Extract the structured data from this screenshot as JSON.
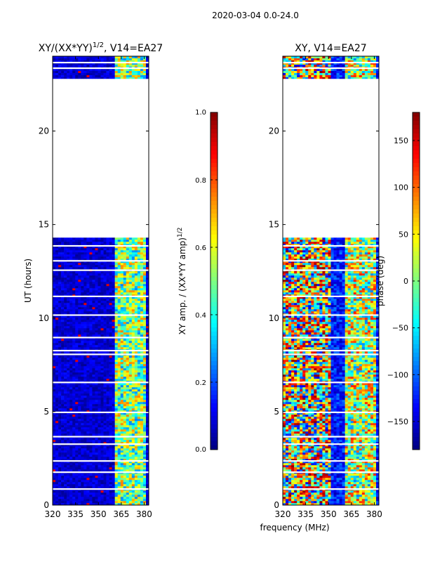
{
  "figure": {
    "suptitle": "2020-03-04 0.0-24.0"
  },
  "chart_data": [
    {
      "type": "heatmap",
      "title": "XY/(XX*YY)^{1/2}, V14=EA27",
      "title_main": "XY/(XX*YY)",
      "title_sup": "1/2",
      "title_tail": ", V14=EA27",
      "xlabel": "",
      "ylabel": "UT (hours)",
      "xlim": [
        320,
        383
      ],
      "ylim": [
        0,
        24
      ],
      "xticks": [
        320,
        335,
        350,
        365,
        380
      ],
      "yticks": [
        0,
        5,
        10,
        15,
        20
      ],
      "data_present_hours": [
        [
          0,
          14.3
        ],
        [
          22.8,
          24
        ]
      ],
      "colorbar": {
        "label": "XY amp. / (XX*YY amp)^{1/2}",
        "label_main": "XY amp. / (XX*YY amp)",
        "label_sup": "1/2",
        "range": [
          0.0,
          1.0
        ],
        "ticks": [
          "0.0",
          "0.2",
          "0.4",
          "0.6",
          "0.8",
          "1.0"
        ],
        "tick_values": [
          0.0,
          0.2,
          0.4,
          0.6,
          0.8,
          1.0
        ],
        "colormap": "jet"
      }
    },
    {
      "type": "heatmap",
      "title": "XY, V14=EA27",
      "xlabel": "frequency (MHz)",
      "ylabel": "",
      "xlim": [
        320,
        383
      ],
      "ylim": [
        0,
        24
      ],
      "xticks": [
        320,
        335,
        350,
        365,
        380
      ],
      "yticks": [
        0,
        5,
        10,
        15,
        20
      ],
      "data_present_hours": [
        [
          0,
          14.3
        ],
        [
          22.8,
          24
        ]
      ],
      "colorbar": {
        "label": "phase (deg)",
        "range": [
          -180,
          180
        ],
        "ticks": [
          "−150",
          "−100",
          "−50",
          "0",
          "50",
          "100",
          "150"
        ],
        "tick_values": [
          -150,
          -100,
          -50,
          0,
          50,
          100,
          150
        ],
        "colormap": "jet"
      }
    }
  ]
}
